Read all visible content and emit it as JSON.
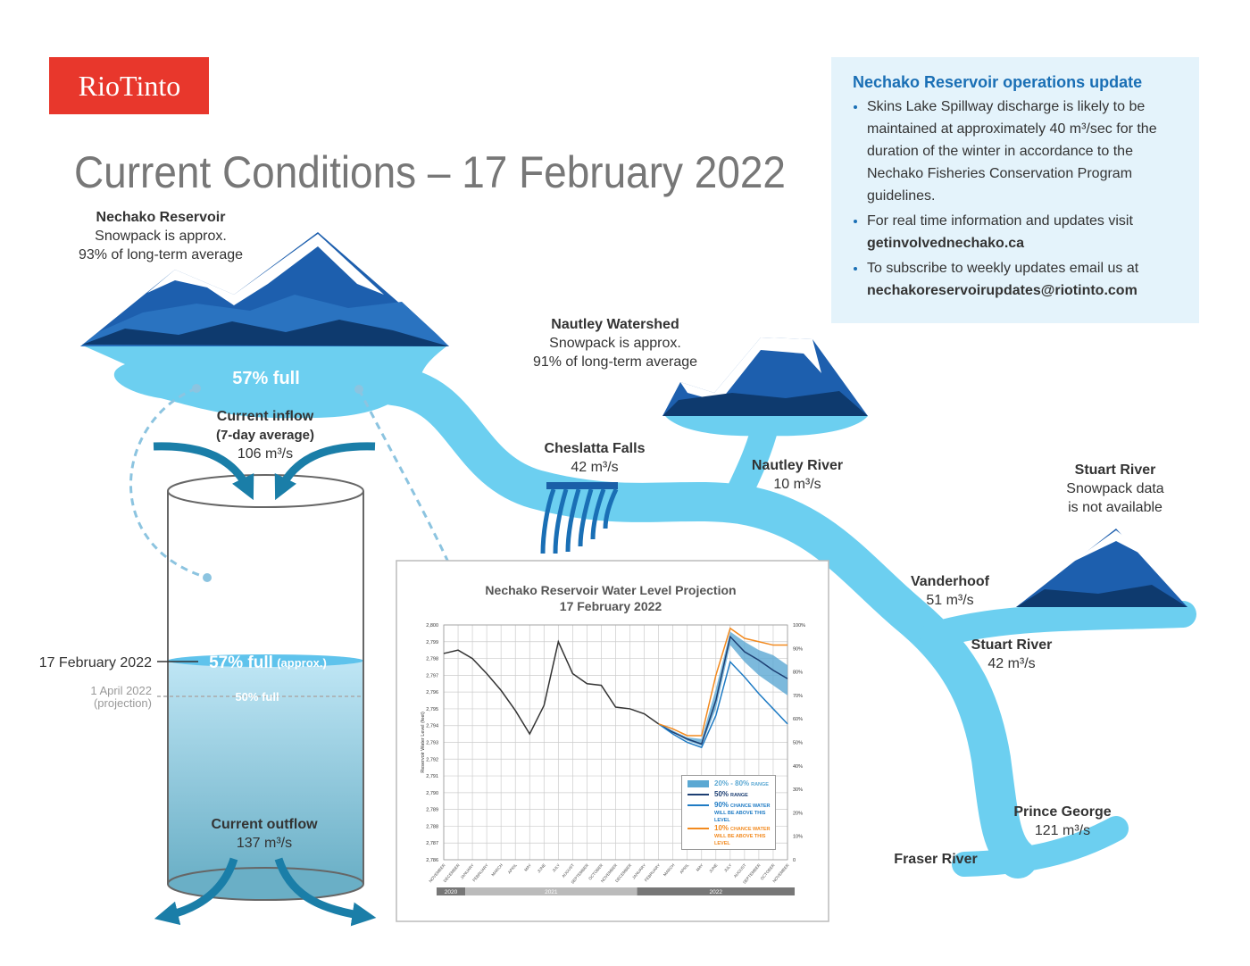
{
  "header": {
    "logo": "RioTinto",
    "title": "Current Conditions – 17 February 2022"
  },
  "update": {
    "title": "Nechako Reservoir operations update",
    "items": [
      {
        "text": "Skins Lake Spillway discharge is likely to be maintained at approximately 40 m³/sec for the duration of the winter in accordance to the Nechako Fisheries Conservation Program guidelines."
      },
      {
        "text": "For real time information and updates visit",
        "link": "getinvolvednechako.ca"
      },
      {
        "text": "To subscribe to weekly updates email us at",
        "link": "nechakoreservoirupdates@riotinto.com"
      }
    ]
  },
  "reservoir": {
    "name": "Nechako Reservoir",
    "lines": [
      "Snowpack is approx.",
      "93% of long-term average"
    ],
    "level": "57% full",
    "inflow": [
      "Current inflow",
      "(7-day average)",
      "106 m³/s"
    ]
  },
  "nautley_watershed": {
    "name": "Nautley Watershed",
    "lines": [
      "Snowpack is approx.",
      "91% of long-term average"
    ]
  },
  "cheslatta": {
    "name": "Cheslatta Falls",
    "flow": "42 m³/s"
  },
  "nautley_river": {
    "name": "Nautley River",
    "flow": "10 m³/s"
  },
  "stuart_watershed": {
    "name": "Stuart River",
    "lines": [
      "Snowpack data",
      "is not available"
    ]
  },
  "vanderhoof": {
    "name": "Vanderhoof",
    "flow": "51 m³/s"
  },
  "stuart_river": {
    "name": "Stuart River",
    "flow": "42 m³/s"
  },
  "prince_george": {
    "name": "Prince George",
    "flow": "121 m³/s"
  },
  "fraser": {
    "name": "Fraser River"
  },
  "tank": {
    "date": "17 February 2022",
    "level": "57% full",
    "level_note": "(approx.)",
    "projection_date": "1 April 2022",
    "projection_note": "(projection)",
    "projection_level": "50% full",
    "outflow": [
      "Current outflow",
      "137 m³/s"
    ]
  },
  "chart_data": {
    "type": "line",
    "title": "Nechako Reservoir Water Level Projection",
    "subtitle": "17 February 2022",
    "y_label": "Reservoir Water Level (feet)",
    "categories": [
      "NOVEMBER",
      "DECEMBER",
      "JANUARY",
      "FEBRUARY",
      "MARCH",
      "APRIL",
      "MAY",
      "JUNE",
      "JULY",
      "AUGUST",
      "SEPTEMBER",
      "OCTOBER",
      "NOVEMBER",
      "DECEMBER",
      "JANUARY",
      "FEBRUARY",
      "MARCH",
      "APRIL",
      "MAY",
      "JUNE",
      "JULY",
      "AUGUST",
      "SEPTEMBER",
      "OCTOBER",
      "NOVEMBER"
    ],
    "years": [
      "2020",
      "2021",
      "2022"
    ],
    "ylim": [
      2786,
      2800
    ],
    "yticks": [
      {
        "value": 2786,
        "label": "2,786"
      },
      {
        "value": 2787,
        "label": "2,787"
      },
      {
        "value": 2788,
        "label": "2,788"
      },
      {
        "value": 2789,
        "label": "2,789"
      },
      {
        "value": 2790,
        "label": "2,790"
      },
      {
        "value": 2791,
        "label": "2,791"
      },
      {
        "value": 2792,
        "label": "2,792"
      },
      {
        "value": 2793,
        "label": "2,793"
      },
      {
        "value": 2794,
        "label": "2,794"
      },
      {
        "value": 2795,
        "label": "2,795"
      },
      {
        "value": 2796,
        "label": "2,796"
      },
      {
        "value": 2797,
        "label": "2,797"
      },
      {
        "value": 2798,
        "label": "2,798"
      },
      {
        "value": 2799,
        "label": "2,799"
      },
      {
        "value": 2800,
        "label": "2,800"
      }
    ],
    "y2lim": [
      0,
      100
    ],
    "y2ticks": [
      0,
      {
        "value": 10,
        "label": "10%"
      },
      {
        "value": 20,
        "label": "20%"
      },
      {
        "value": 30,
        "label": "30%"
      },
      {
        "value": 40,
        "label": "40%"
      },
      {
        "value": 50,
        "label": "50%"
      },
      {
        "value": 60,
        "label": "60%"
      },
      {
        "value": 70,
        "label": "70%"
      },
      {
        "value": 80,
        "label": "80%"
      },
      {
        "value": 90,
        "label": "90%"
      },
      {
        "value": 100,
        "label": "100%"
      }
    ],
    "grid": true,
    "band": {
      "name": "20% - 80%",
      "note": "RANGE",
      "color": "#5ba8d3",
      "lower": [
        null,
        null,
        null,
        null,
        null,
        null,
        null,
        null,
        null,
        null,
        null,
        null,
        null,
        null,
        null,
        2794.1,
        2793.6,
        2793.1,
        2792.8,
        2795.0,
        2798.8,
        2797.8,
        2797.0,
        2796.4,
        2795.8
      ],
      "upper": [
        null,
        null,
        null,
        null,
        null,
        null,
        null,
        null,
        null,
        null,
        null,
        null,
        null,
        null,
        null,
        2794.1,
        2793.7,
        2793.3,
        2793.2,
        2796.2,
        2799.6,
        2799.0,
        2798.5,
        2798.2,
        2797.6
      ]
    },
    "series": [
      {
        "color": "#333333",
        "values": [
          2798.3,
          2798.5,
          2798.0,
          2797.1,
          2796.1,
          2794.9,
          2793.5,
          2795.2,
          2799.0,
          2797.1,
          2796.5,
          2796.4,
          2795.1,
          2795.0,
          2794.7,
          2794.1,
          null,
          null,
          null,
          null,
          null,
          null,
          null,
          null,
          null
        ]
      },
      {
        "name": "50%",
        "note": "RANGE",
        "color": "#1d3f73",
        "values": [
          null,
          null,
          null,
          null,
          null,
          null,
          null,
          null,
          null,
          null,
          null,
          null,
          null,
          null,
          null,
          2794.1,
          2793.6,
          2793.2,
          2792.9,
          2795.5,
          2799.3,
          2798.4,
          2797.9,
          2797.3,
          2796.8
        ]
      },
      {
        "name": "90%",
        "note": "CHANCE WATER WILL BE ABOVE THIS LEVEL",
        "color": "#1f7bc4",
        "values": [
          null,
          null,
          null,
          null,
          null,
          null,
          null,
          null,
          null,
          null,
          null,
          null,
          null,
          null,
          null,
          2794.1,
          2793.5,
          2793.0,
          2792.7,
          2794.6,
          2797.8,
          2796.9,
          2795.9,
          2795.0,
          2794.1
        ]
      },
      {
        "name": "10%",
        "note": "CHANCE WATER WILL BE ABOVE THIS LEVEL",
        "color": "#f28a1f",
        "values": [
          null,
          null,
          null,
          null,
          null,
          null,
          null,
          null,
          null,
          null,
          null,
          null,
          null,
          null,
          null,
          2794.1,
          2793.8,
          2793.4,
          2793.4,
          2797.0,
          2799.8,
          2799.2,
          2799.0,
          2798.8,
          2798.8
        ]
      }
    ]
  }
}
